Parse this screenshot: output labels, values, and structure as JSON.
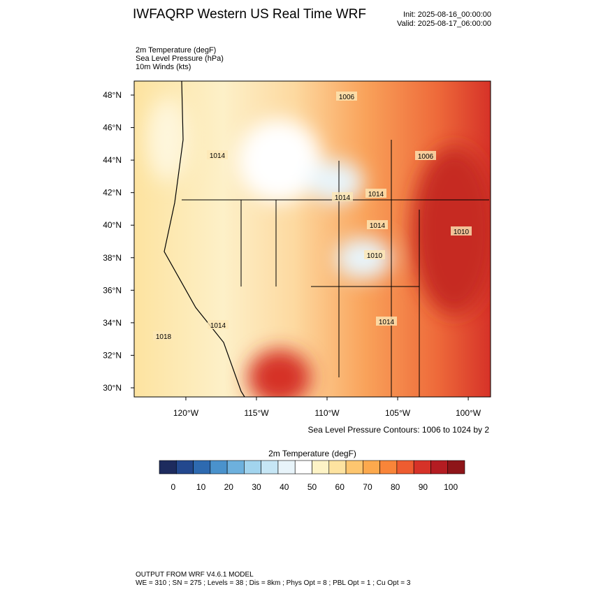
{
  "header": {
    "title": "IWFAQRP Western US Real Time WRF",
    "init": "Init: 2025-08-16_00:00:00",
    "valid": "Valid: 2025-08-17_06:00:00"
  },
  "fields": [
    "2m Temperature   (degF)",
    "Sea Level Pressure   (hPa)",
    "10m Winds   (kts)"
  ],
  "map": {
    "xlim": [
      -123.66,
      -98.42
    ],
    "ylim": [
      29.44,
      48.86
    ],
    "yticks": [
      {
        "value": 30,
        "label": "30°N"
      },
      {
        "value": 32,
        "label": "32°N"
      },
      {
        "value": 34,
        "label": "34°N"
      },
      {
        "value": 36,
        "label": "36°N"
      },
      {
        "value": 38,
        "label": "38°N"
      },
      {
        "value": 40,
        "label": "40°N"
      },
      {
        "value": 42,
        "label": "42°N"
      },
      {
        "value": 44,
        "label": "44°N"
      },
      {
        "value": 46,
        "label": "46°N"
      },
      {
        "value": 48,
        "label": "48°N"
      }
    ],
    "xticks": [
      {
        "value": -120,
        "label": "120°W"
      },
      {
        "value": -115,
        "label": "115°W"
      },
      {
        "value": -110,
        "label": "110°W"
      },
      {
        "value": -105,
        "label": "105°W"
      },
      {
        "value": -100,
        "label": "100°W"
      }
    ],
    "contour_labels": [
      "1006",
      "1006",
      "1014",
      "1018",
      "1014",
      "1014",
      "1010",
      "1014",
      "1010",
      "1014",
      "1014"
    ],
    "contour_note": "Sea Level Pressure Contours: 1006 to 1024 by 2"
  },
  "colorbar": {
    "title": "2m Temperature  (degF)",
    "clim": [
      -5,
      105
    ],
    "colors": [
      "#1d2b5e",
      "#23488e",
      "#2e6ab0",
      "#4a92cc",
      "#6db0dd",
      "#a2d4ee",
      "#c6e6f5",
      "#e8f4fa",
      "#ffffff",
      "#fdf3c6",
      "#fde3a0",
      "#fdc66f",
      "#fca94d",
      "#f98539",
      "#ee5c30",
      "#d63228",
      "#b41c22",
      "#8e1519"
    ],
    "ticks": [
      0,
      10,
      20,
      30,
      40,
      50,
      60,
      70,
      80,
      90,
      100
    ]
  },
  "footer": [
    "OUTPUT FROM WRF V4.6.1 MODEL",
    "WE = 310 ; SN = 275 ; Levels = 38 ; Dis = 8km ; Phys Opt = 8 ; PBL Opt = 1 ; Cu Opt = 3"
  ]
}
